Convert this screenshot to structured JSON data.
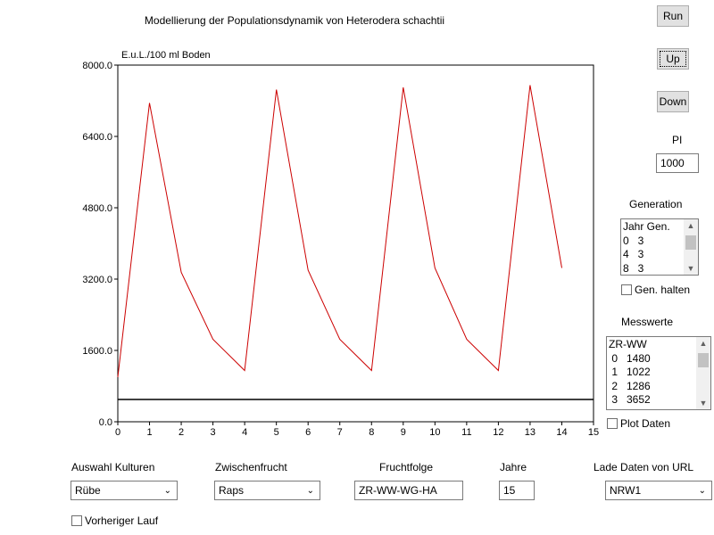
{
  "title": "Modellierung der Populationsdynamik von Heterodera schachtii",
  "buttons": {
    "run": "Run",
    "up": "Up",
    "down": "Down"
  },
  "pi": {
    "label": "PI",
    "value": "1000"
  },
  "generation": {
    "label": "Generation",
    "rows": [
      "Jahr Gen.",
      "0   3",
      "4   3",
      "8   3"
    ],
    "hold_label": "Gen. halten"
  },
  "messwerte": {
    "label": "Messwerte",
    "rows": [
      "ZR-WW",
      " 0   1480",
      " 1   1022",
      " 2   1286",
      " 3   3652"
    ],
    "plot_label": "Plot Daten"
  },
  "controls": {
    "kulturen_label": "Auswahl Kulturen",
    "kulturen_value": "Rübe",
    "zwischen_label": "Zwischenfrucht",
    "zwischen_value": "Raps",
    "fruchtfolge_label": "Fruchtfolge",
    "fruchtfolge_value": "ZR-WW-WG-HA",
    "jahre_label": "Jahre",
    "jahre_value": "15",
    "url_label": "Lade Daten von URL",
    "url_value": "NRW1",
    "vorheriger_label": "Vorheriger Lauf"
  },
  "chart_data": {
    "type": "line",
    "ylabel": "E.u.L./100 ml Boden",
    "xlim": [
      0,
      15
    ],
    "ylim": [
      0,
      8000
    ],
    "x_ticks": [
      "0",
      "1",
      "2",
      "3",
      "4",
      "5",
      "6",
      "7",
      "8",
      "9",
      "10",
      "11",
      "12",
      "13",
      "14",
      "15"
    ],
    "y_ticks": [
      "0.0",
      "1600.0",
      "3200.0",
      "4800.0",
      "6400.0",
      "8000.0"
    ],
    "threshold": 500,
    "series": [
      {
        "color": "#cc0000",
        "x": [
          0,
          1,
          2,
          3,
          4,
          5,
          6,
          7,
          8,
          9,
          10,
          11,
          12,
          13,
          14
        ],
        "y": [
          1000,
          7150,
          3350,
          1850,
          1150,
          7450,
          3400,
          1850,
          1150,
          7500,
          3450,
          1850,
          1150,
          7550,
          3450
        ]
      }
    ],
    "threshold_color": "#000000"
  }
}
